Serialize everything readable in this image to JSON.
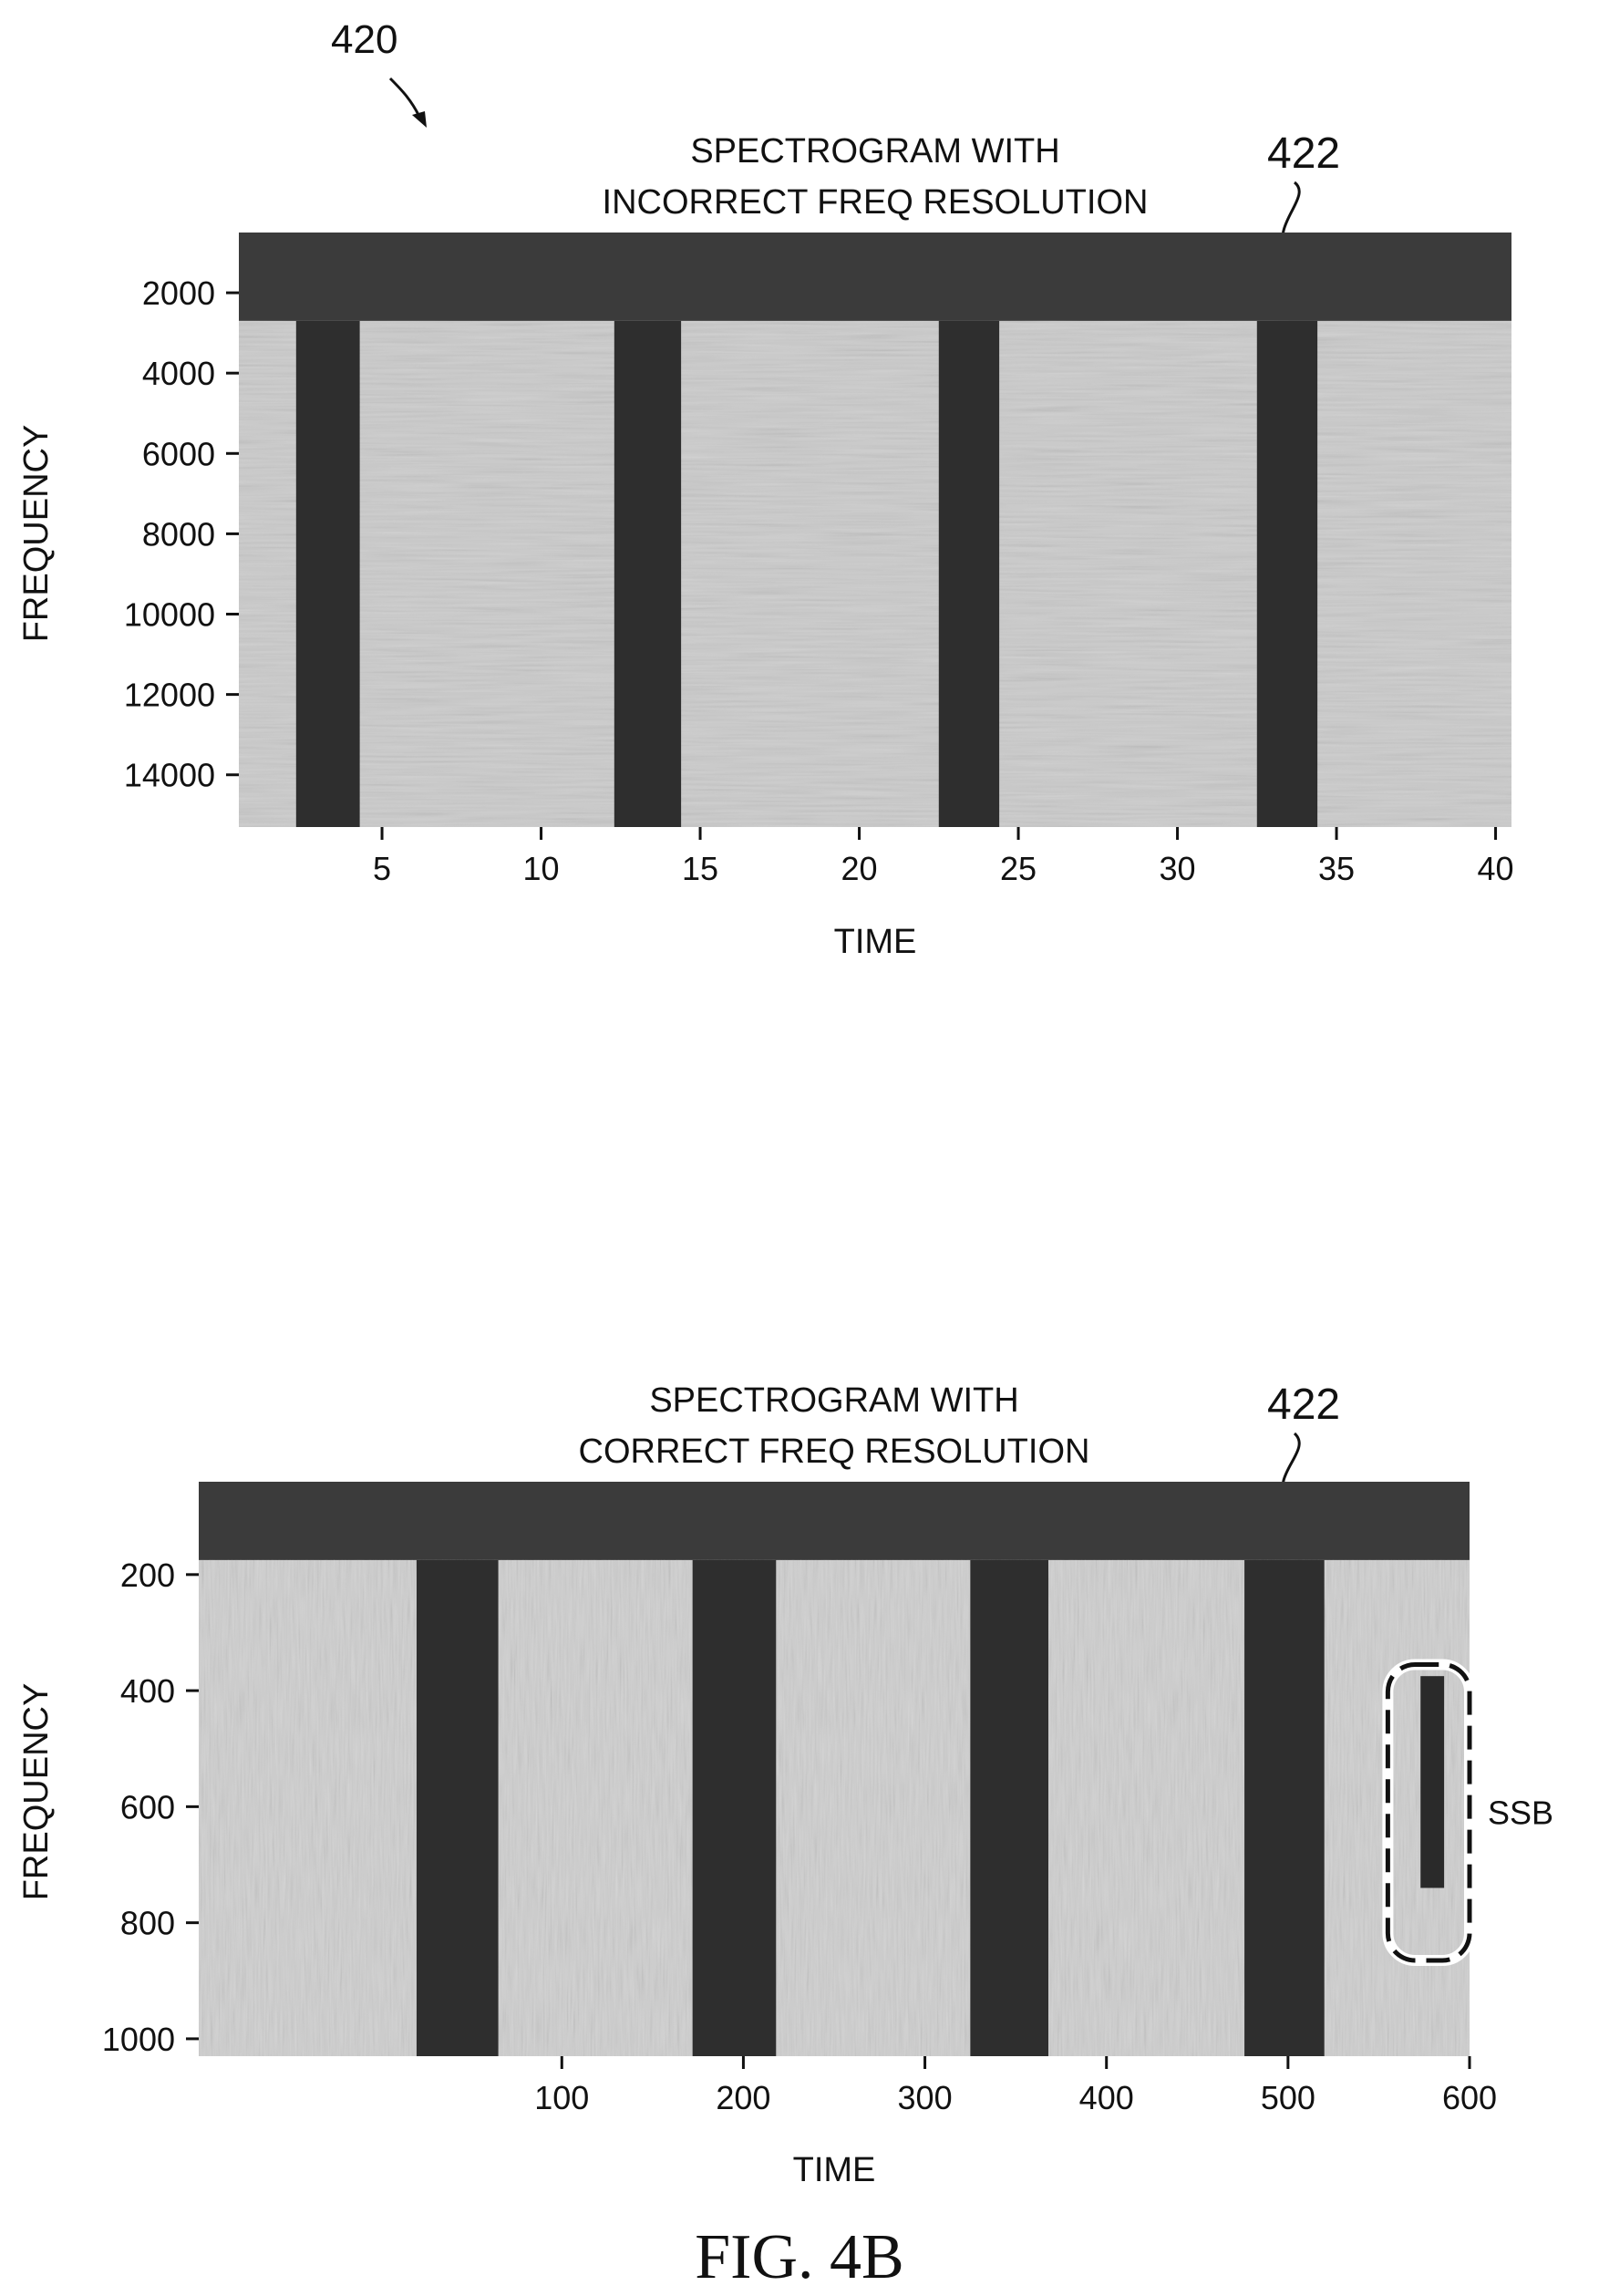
{
  "figure": {
    "ref_number": "420",
    "caption": "FIG. 4B"
  },
  "chart_data": [
    {
      "type": "heatmap",
      "title": "SPECTROGRAM WITH",
      "subtitle": "INCORRECT FREQ RESOLUTION",
      "xlabel": "TIME",
      "ylabel": "FREQUENCY",
      "xlim": [
        0.5,
        40.5
      ],
      "ylim": [
        15300,
        500
      ],
      "x_ticks": [
        5,
        10,
        15,
        20,
        25,
        30,
        35,
        40
      ],
      "y_ticks": [
        2000,
        4000,
        6000,
        8000,
        10000,
        12000,
        14000
      ],
      "bright_region_start_freq": 2700,
      "dark_time_bands": [
        [
          2.3,
          4.3
        ],
        [
          12.3,
          14.4
        ],
        [
          22.5,
          24.4
        ],
        [
          32.5,
          34.4
        ]
      ],
      "ref_label": "422",
      "colors": {
        "background": "#3b3b3b",
        "bright": "#cbcbcb",
        "dark_band": "#2e2e2e"
      }
    },
    {
      "type": "heatmap",
      "title": "SPECTROGRAM WITH",
      "subtitle": "CORRECT FREQ RESOLUTION",
      "xlabel": "TIME",
      "ylabel": "FREQUENCY",
      "xlim": [
        -100,
        600
      ],
      "ylim": [
        1030,
        40
      ],
      "x_ticks": [
        100,
        200,
        300,
        400,
        500,
        600
      ],
      "y_ticks": [
        200,
        400,
        600,
        800,
        1000
      ],
      "bright_region_start_freq": 175,
      "dark_time_bands": [
        [
          20,
          65
        ],
        [
          172,
          218
        ],
        [
          325,
          368
        ],
        [
          476,
          520
        ]
      ],
      "ref_label": "422",
      "annotation": {
        "label": "SSB",
        "time_range": [
          555,
          600
        ],
        "freq_range": [
          355,
          865
        ],
        "burst_time_range": [
          573,
          586
        ],
        "burst_freq_range": [
          375,
          740
        ]
      },
      "colors": {
        "background": "#3b3b3b",
        "bright": "#cfcfcf",
        "dark_band": "#2e2e2e"
      }
    }
  ]
}
